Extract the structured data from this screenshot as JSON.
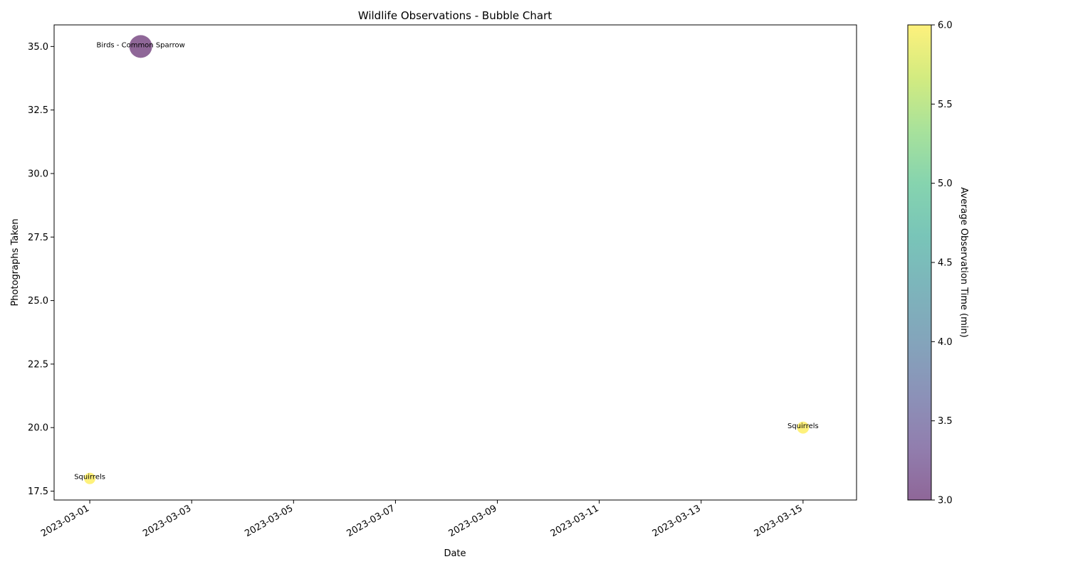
{
  "chart_data": {
    "type": "scatter",
    "title": "Wildlife Observations - Bubble Chart",
    "xlabel": "Date",
    "ylabel": "Photographs Taken",
    "x_axis_type": "date",
    "xlim": [
      "2023-02-28",
      "2023-03-16"
    ],
    "ylim": [
      17.15,
      35.85
    ],
    "xticks": [
      "2023-03-01",
      "2023-03-03",
      "2023-03-05",
      "2023-03-07",
      "2023-03-09",
      "2023-03-11",
      "2023-03-13",
      "2023-03-15"
    ],
    "yticks": [
      17.5,
      20.0,
      22.5,
      25.0,
      27.5,
      30.0,
      32.5,
      35.0
    ],
    "ytick_labels": [
      "17.5",
      "20.0",
      "22.5",
      "25.0",
      "27.5",
      "30.0",
      "32.5",
      "35.0"
    ],
    "grid": false,
    "points": [
      {
        "x": "2023-03-01",
        "y": 18,
        "label": "Squirrels",
        "color_value": 6,
        "size_value": 18
      },
      {
        "x": "2023-03-02",
        "y": 35,
        "label": "Birds - Common Sparrow",
        "color_value": 3,
        "size_value": 35
      },
      {
        "x": "2023-03-15",
        "y": 20,
        "label": "Squirrels",
        "color_value": 6,
        "size_value": 20
      }
    ],
    "colorbar": {
      "label": "Average Observation Time (min)",
      "min": 3.0,
      "max": 6.0,
      "ticks": [
        3.0,
        3.5,
        4.0,
        4.5,
        5.0,
        5.5,
        6.0
      ],
      "tick_labels": [
        "3.0",
        "3.5",
        "4.0",
        "4.5",
        "5.0",
        "5.5",
        "6.0"
      ],
      "colormap": "viridis",
      "alpha": 0.6
    }
  }
}
